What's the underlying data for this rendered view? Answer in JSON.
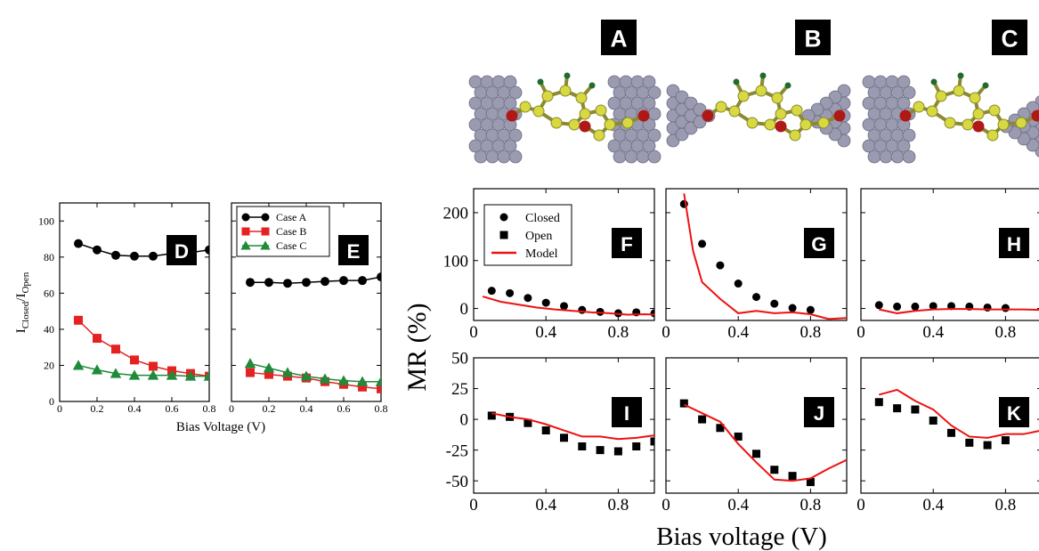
{
  "figure": {
    "colors": {
      "case_a": "#000000",
      "case_b": "#e52222",
      "case_c": "#1f8a3a",
      "model": "#ee1111",
      "panel_tag_bg": "#000000",
      "panel_tag_fg": "#ffffff",
      "carbon": "#d8d840",
      "oxygen": "#b01818",
      "hydrogen": "#1f6b2c",
      "metal": "#9a9ab0"
    },
    "structure_panels": [
      {
        "tag": "A",
        "description_icon": "molecular-junction-flat-electrodes"
      },
      {
        "tag": "B",
        "description_icon": "molecular-junction-pyramid-tips"
      },
      {
        "tag": "C",
        "description_icon": "molecular-junction-mixed-electrodes"
      }
    ],
    "left_group": {
      "ylabel_main": "I",
      "ylabel_sub1": "Closed",
      "ylabel_mid": "/I",
      "ylabel_sub2": "Open",
      "xlabel": "Bias Voltage (V)"
    },
    "right_group": {
      "ylabel": "MR (%)",
      "xlabel": "Bias voltage (V)"
    }
  },
  "chart_data": [
    {
      "panel": "D",
      "type": "line",
      "xlim": [
        0,
        0.8
      ],
      "ylim": [
        0,
        110
      ],
      "xticks": [
        "0",
        "0.2",
        "0.4",
        "0.6",
        "0.8"
      ],
      "yticks": [
        "0",
        "20",
        "40",
        "60",
        "80",
        "100"
      ],
      "x": [
        0.1,
        0.2,
        0.3,
        0.4,
        0.5,
        0.6,
        0.7,
        0.8
      ],
      "series": [
        {
          "name": "Case A",
          "marker": "circle",
          "values": [
            87.5,
            84,
            81,
            80.5,
            80.5,
            82,
            82.5,
            84
          ]
        },
        {
          "name": "Case B",
          "marker": "square",
          "values": [
            45,
            35,
            29,
            23,
            19.5,
            17,
            15.5,
            14
          ]
        },
        {
          "name": "Case C",
          "marker": "triangle",
          "values": [
            20,
            17.5,
            15.5,
            14.5,
            14.5,
            14.5,
            14,
            14
          ]
        }
      ]
    },
    {
      "panel": "E",
      "type": "line",
      "xlim": [
        0,
        0.8
      ],
      "ylim": [
        0,
        110
      ],
      "xticks": [
        "0",
        "0.2",
        "0.4",
        "0.6",
        "0.8"
      ],
      "legend": {
        "placement": "top-left",
        "entries": [
          "Case A",
          "Case B",
          "Case C"
        ]
      },
      "x": [
        0.1,
        0.2,
        0.3,
        0.4,
        0.5,
        0.6,
        0.7,
        0.8
      ],
      "series": [
        {
          "name": "Case A",
          "marker": "circle",
          "values": [
            66,
            66,
            65.5,
            66,
            66.5,
            67,
            67,
            69
          ]
        },
        {
          "name": "Case B",
          "marker": "square",
          "values": [
            16,
            15,
            14,
            13,
            11,
            9.5,
            8,
            7
          ]
        },
        {
          "name": "Case C",
          "marker": "triangle",
          "values": [
            21,
            18.5,
            16,
            14,
            12.5,
            11.5,
            11,
            11
          ]
        }
      ]
    },
    {
      "panel": "F",
      "type": "scatter",
      "xlim": [
        0,
        1.0
      ],
      "ylim": [
        -25,
        250
      ],
      "xticks": [
        "0",
        "0.4",
        "0.8"
      ],
      "yticks": [
        "0",
        "100",
        "200"
      ],
      "legend": {
        "placement": "top-left",
        "entries": [
          "Closed",
          "Open",
          "Model"
        ]
      },
      "series": [
        {
          "name": "Closed",
          "marker": "circle",
          "x": [
            0.1,
            0.2,
            0.3,
            0.4,
            0.5,
            0.6,
            0.7,
            0.8,
            0.9,
            1.0
          ],
          "values": [
            37,
            32,
            22,
            12,
            5,
            -3,
            -7,
            -10,
            -8,
            -10
          ]
        },
        {
          "name": "Model",
          "marker": "line",
          "x": [
            0.05,
            0.15,
            0.25,
            0.35,
            0.45,
            0.55,
            0.65,
            0.75,
            0.85,
            0.95,
            1.0
          ],
          "values": [
            25,
            14,
            8,
            2,
            -2,
            -5,
            -8,
            -10,
            -13,
            -12,
            -13
          ]
        }
      ]
    },
    {
      "panel": "G",
      "type": "scatter",
      "xlim": [
        0,
        1.0
      ],
      "ylim": [
        -25,
        250
      ],
      "xticks": [
        "0",
        "0.4",
        "0.8"
      ],
      "series": [
        {
          "name": "Closed",
          "marker": "circle",
          "x": [
            0.1,
            0.2,
            0.3,
            0.4,
            0.5,
            0.6,
            0.7,
            0.8
          ],
          "values": [
            218,
            135,
            90,
            52,
            24,
            10,
            1,
            -3
          ]
        },
        {
          "name": "Model",
          "marker": "line",
          "x": [
            0.1,
            0.15,
            0.2,
            0.3,
            0.4,
            0.5,
            0.6,
            0.7,
            0.8,
            0.9,
            1.0
          ],
          "values": [
            240,
            120,
            55,
            20,
            -10,
            -5,
            -10,
            -8,
            -12,
            -22,
            -20
          ]
        }
      ]
    },
    {
      "panel": "H",
      "type": "scatter",
      "xlim": [
        0,
        1.0
      ],
      "ylim": [
        -25,
        250
      ],
      "xticks": [
        "0",
        "0.4",
        "0.8"
      ],
      "series": [
        {
          "name": "Closed",
          "marker": "circle",
          "x": [
            0.1,
            0.2,
            0.3,
            0.4,
            0.5,
            0.6,
            0.7,
            0.8
          ],
          "values": [
            7,
            4,
            4,
            5,
            5,
            4,
            2,
            1
          ]
        },
        {
          "name": "Model",
          "marker": "line",
          "x": [
            0.1,
            0.2,
            0.3,
            0.4,
            0.5,
            0.6,
            0.7,
            0.8,
            0.9,
            1.0
          ],
          "values": [
            -2,
            -10,
            -5,
            -2,
            -1,
            -1,
            -2,
            -2,
            -2,
            -3
          ]
        }
      ]
    },
    {
      "panel": "I",
      "type": "scatter",
      "xlim": [
        0,
        1.0
      ],
      "ylim": [
        -60,
        50
      ],
      "xticks": [
        "0",
        "0.4",
        "0.8"
      ],
      "yticks": [
        "-50",
        "-25",
        "0",
        "25",
        "50"
      ],
      "series": [
        {
          "name": "Open",
          "marker": "square",
          "x": [
            0.1,
            0.2,
            0.3,
            0.4,
            0.5,
            0.6,
            0.7,
            0.8,
            0.9,
            1.0
          ],
          "values": [
            3,
            2,
            -3,
            -9,
            -15,
            -22,
            -25,
            -26,
            -22,
            -18
          ]
        },
        {
          "name": "Model",
          "marker": "line",
          "x": [
            0.1,
            0.2,
            0.3,
            0.4,
            0.5,
            0.6,
            0.7,
            0.8,
            0.9,
            1.0
          ],
          "values": [
            5,
            2,
            0,
            -4,
            -9,
            -14,
            -14,
            -16,
            -15,
            -13
          ]
        }
      ]
    },
    {
      "panel": "J",
      "type": "scatter",
      "xlim": [
        0,
        1.0
      ],
      "ylim": [
        -60,
        50
      ],
      "xticks": [
        "0",
        "0.4",
        "0.8"
      ],
      "series": [
        {
          "name": "Open",
          "marker": "square",
          "x": [
            0.1,
            0.2,
            0.3,
            0.4,
            0.5,
            0.6,
            0.7,
            0.8
          ],
          "values": [
            13,
            0,
            -7,
            -14,
            -28,
            -41,
            -46,
            -51
          ]
        },
        {
          "name": "Model",
          "marker": "line",
          "x": [
            0.1,
            0.2,
            0.3,
            0.4,
            0.5,
            0.6,
            0.7,
            0.8,
            0.9,
            1.0
          ],
          "values": [
            12,
            5,
            -2,
            -20,
            -35,
            -49,
            -50,
            -48,
            -40,
            -33
          ]
        }
      ]
    },
    {
      "panel": "K",
      "type": "scatter",
      "xlim": [
        0,
        1.0
      ],
      "ylim": [
        -60,
        50
      ],
      "xticks": [
        "0",
        "0.4",
        "0.8"
      ],
      "series": [
        {
          "name": "Open",
          "marker": "square",
          "x": [
            0.1,
            0.2,
            0.3,
            0.4,
            0.5,
            0.6,
            0.7,
            0.8
          ],
          "values": [
            14,
            9,
            8,
            -1,
            -11,
            -19,
            -21,
            -17
          ]
        },
        {
          "name": "Model",
          "marker": "line",
          "x": [
            0.1,
            0.2,
            0.3,
            0.4,
            0.5,
            0.6,
            0.7,
            0.8,
            0.9,
            1.0
          ],
          "values": [
            20,
            24,
            15,
            8,
            -5,
            -14,
            -15,
            -12,
            -12,
            -9
          ]
        }
      ]
    }
  ]
}
